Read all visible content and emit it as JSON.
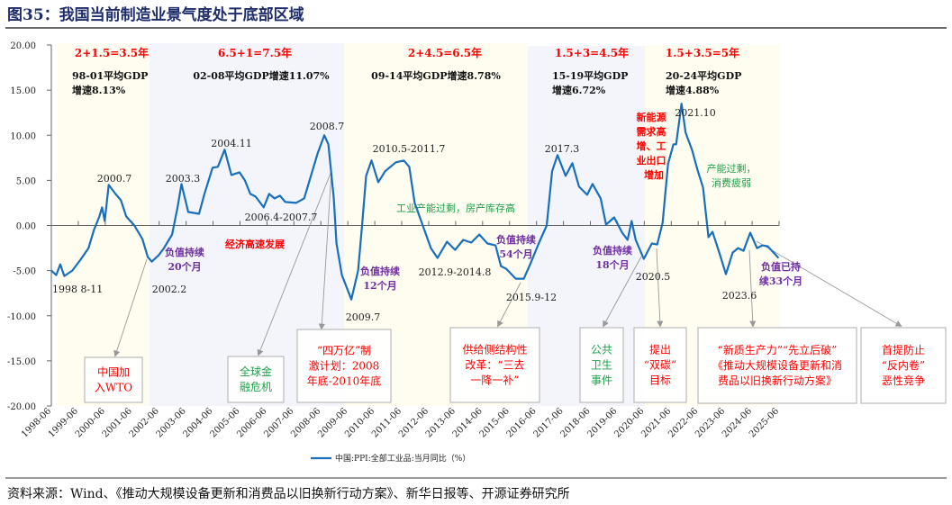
{
  "title": "图35：我国当前制造业景气度处于底部区域",
  "source": "资料来源：Wind、《推动大规模设备更新和消费品以旧换新行动方案》、新华日报等、开源证券研究所",
  "colors": {
    "line": "#1a6fbb",
    "red": "#ff0000",
    "green": "#1fa04a",
    "purple": "#7030a0",
    "band_yellow": "#fffcf0",
    "band_blue": "#f3f5fb"
  },
  "chart_data": {
    "type": "line",
    "title": "",
    "xlabel": "",
    "ylabel": "",
    "ylim": [
      -20,
      20
    ],
    "yticks": [
      "20.00",
      "15.00",
      "10.00",
      "5.00",
      "0.00",
      "-5.00",
      "-10.00",
      "-15.00",
      "-20.00"
    ],
    "xticks": [
      "1998-06",
      "1999-06",
      "2000-06",
      "2001-06",
      "2002-06",
      "2003-06",
      "2004-06",
      "2005-06",
      "2006-06",
      "2007-06",
      "2008-06",
      "2009-06",
      "2010-06",
      "2011-06",
      "2012-06",
      "2013-06",
      "2014-06",
      "2015-06",
      "2016-06",
      "2017-06",
      "2018-06",
      "2019-06",
      "2020-06",
      "2021-06",
      "2022-06",
      "2023-06",
      "2024-06",
      "2025-06"
    ],
    "legend": "中国:PPI:全部工业品:当月同比（%）",
    "legend_position": "bottom",
    "series": [
      {
        "name": "中国:PPI:全部工业品:当月同比（%）",
        "x": [
          1998.42,
          1998.6,
          1998.75,
          1998.9,
          1999.2,
          1999.5,
          1999.8,
          2000.0,
          2000.2,
          2000.3,
          2000.4,
          2000.55,
          2000.8,
          2001.0,
          2001.2,
          2001.5,
          2001.8,
          2002.0,
          2002.15,
          2002.4,
          2002.6,
          2002.9,
          2003.1,
          2003.25,
          2003.5,
          2003.7,
          2003.9,
          2004.1,
          2004.4,
          2004.6,
          2004.85,
          2005.1,
          2005.4,
          2005.6,
          2005.8,
          2006.0,
          2006.3,
          2006.5,
          2006.7,
          2006.9,
          2007.1,
          2007.5,
          2007.8,
          2008.0,
          2008.3,
          2008.55,
          2008.7,
          2008.9,
          2009.0,
          2009.2,
          2009.55,
          2009.8,
          2009.95,
          2010.1,
          2010.3,
          2010.55,
          2010.8,
          2011.2,
          2011.5,
          2011.7,
          2011.9,
          2012.2,
          2012.5,
          2012.75,
          2013.1,
          2013.4,
          2013.7,
          2014.0,
          2014.3,
          2014.6,
          2014.9,
          2015.1,
          2015.3,
          2015.65,
          2015.95,
          2016.2,
          2016.5,
          2016.8,
          2017.0,
          2017.2,
          2017.5,
          2017.75,
          2018.0,
          2018.3,
          2018.5,
          2018.8,
          2019.0,
          2019.3,
          2019.6,
          2019.8,
          2019.95,
          2020.1,
          2020.4,
          2020.7,
          2020.9,
          2021.1,
          2021.3,
          2021.5,
          2021.6,
          2021.8,
          2021.95,
          2022.2,
          2022.4,
          2022.6,
          2022.8,
          2022.95,
          2023.2,
          2023.45,
          2023.7,
          2023.9,
          2024.1,
          2024.35,
          2024.6,
          2024.8,
          2025.0,
          2025.4
        ],
        "values": [
          -5.0,
          -5.5,
          -4.3,
          -5.6,
          -5.0,
          -3.8,
          -2.5,
          -0.5,
          1.0,
          2.0,
          0.5,
          4.5,
          3.5,
          2.8,
          1.0,
          0.0,
          -1.5,
          -3.5,
          -4.0,
          -3.3,
          -2.5,
          -1.0,
          2.0,
          4.6,
          1.5,
          1.4,
          1.3,
          3.5,
          6.4,
          6.5,
          8.4,
          5.6,
          5.9,
          5.0,
          3.5,
          3.2,
          2.0,
          3.5,
          3.0,
          3.3,
          2.6,
          2.5,
          3.0,
          5.0,
          8.0,
          10.0,
          9.0,
          3.0,
          -2.0,
          -5.5,
          -8.2,
          -5.0,
          0.0,
          5.5,
          7.2,
          4.8,
          6.0,
          7.0,
          7.2,
          6.5,
          2.5,
          0.0,
          -2.5,
          -3.6,
          -1.8,
          -2.7,
          -1.6,
          -1.9,
          -1.0,
          -2.0,
          -2.2,
          -4.5,
          -4.8,
          -5.9,
          -5.9,
          -4.2,
          -2.0,
          0.0,
          6.0,
          7.8,
          5.5,
          6.9,
          4.3,
          3.4,
          4.6,
          3.0,
          0.1,
          0.9,
          -0.8,
          -1.6,
          0.5,
          -1.6,
          -3.7,
          -2.0,
          -2.1,
          0.3,
          6.8,
          9.0,
          9.0,
          13.5,
          10.3,
          8.3,
          6.1,
          4.2,
          -1.3,
          -0.7,
          -3.0,
          -5.4,
          -3.0,
          -2.5,
          -2.8,
          -0.8,
          -2.5,
          -2.2,
          -2.3,
          -3.6
        ]
      }
    ]
  },
  "periods": [
    {
      "years": "2+1.5=3.5年",
      "gdp": [
        "98-01平均GDP",
        "增速8.13%"
      ]
    },
    {
      "years": "6.5+1=7.5年",
      "gdp": [
        "02-08平均GDP增速11.07%"
      ]
    },
    {
      "years": "2+4.5=6.5年",
      "gdp": [
        "09-14平均GDP增速8.78%"
      ]
    },
    {
      "years": "1.5+3=4.5年",
      "gdp": [
        "15-19平均GDP",
        "增速6.72%"
      ]
    },
    {
      "years": "1.5+3.5=5年",
      "gdp": [
        "20-24平均GDP",
        "增速4.88%"
      ]
    }
  ],
  "dates": [
    "2000.7",
    "1998 8-11",
    "2002.2",
    "2003.3",
    "2004.11",
    "2006.4-2007.7",
    "2008.7",
    "2009.7",
    "2010.5-2011.7",
    "2012.9-2014.8",
    "2015.9-12",
    "2017.3",
    "2020.5",
    "2021.10",
    "2023.6"
  ],
  "negatives": [
    [
      "负值持续",
      "20个月"
    ],
    [
      "负值持续",
      "12个月"
    ],
    [
      "负值持续",
      "54个月"
    ],
    [
      "负值持续",
      "18个月"
    ],
    [
      "负值已持",
      "续33个月"
    ]
  ],
  "notes": {
    "boom": "经济高速发展",
    "new_energy": [
      "新能源",
      "需求高",
      "增、工",
      "业出口",
      "增加"
    ],
    "overcap1": "工业产能过剩，房产库存高",
    "overcap2": [
      "产能过剩，",
      "消费疲弱"
    ]
  },
  "boxes": [
    {
      "lines": [
        "中国加",
        "入WTO"
      ],
      "color": "red"
    },
    {
      "lines": [
        "全球金",
        "融危机"
      ],
      "color": "green"
    },
    {
      "lines": [
        "“四万亿”制",
        "激计划：2008",
        "年底-2010年底"
      ],
      "color": "red"
    },
    {
      "lines": [
        "供给侧结构性",
        "改革：“三去",
        "一降一补”"
      ],
      "color": "red"
    },
    {
      "lines": [
        "公共",
        "卫生",
        "事件"
      ],
      "color": "green"
    },
    {
      "lines": [
        "提出",
        "“双碳”",
        "目标"
      ],
      "color": "red"
    },
    {
      "lines": [
        "“新质生产力”“先立后破”",
        "《推动大规模设备更新和消",
        "费品以旧换新行动方案》"
      ],
      "color": "red"
    },
    {
      "lines": [
        "首提防止",
        "“反内卷”",
        "恶性竞争"
      ],
      "color": "red"
    }
  ]
}
